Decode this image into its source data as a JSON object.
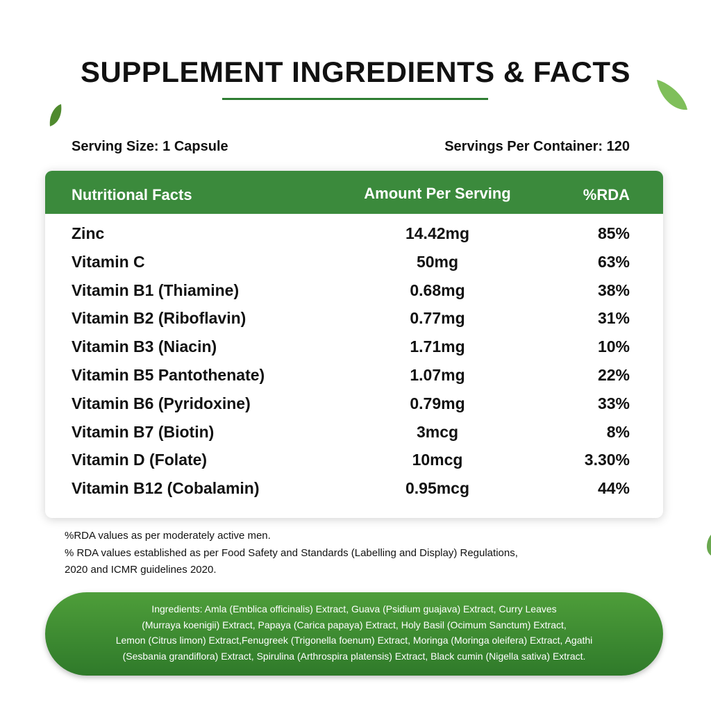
{
  "header": {
    "title": "SUPPLEMENT INGREDIENTS & FACTS"
  },
  "serving": {
    "size": "Serving Size: 1 Capsule",
    "per_container": "Servings Per Container: 120"
  },
  "table": {
    "columns": [
      "Nutritional Facts",
      "Amount Per Serving",
      "%RDA"
    ],
    "rows": [
      [
        "Zinc",
        "14.42mg",
        "85%"
      ],
      [
        "Vitamin C",
        "50mg",
        "63%"
      ],
      [
        "Vitamin B1 (Thiamine)",
        "0.68mg",
        "38%"
      ],
      [
        "Vitamin B2 (Riboflavin)",
        "0.77mg",
        "31%"
      ],
      [
        "Vitamin B3 (Niacin)",
        "1.71mg",
        "10%"
      ],
      [
        "Vitamin B5 Pantothenate)",
        "1.07mg",
        "22%"
      ],
      [
        "Vitamin B6 (Pyridoxine)",
        "0.79mg",
        "33%"
      ],
      [
        "Vitamin B7 (Biotin)",
        "3mcg",
        "8%"
      ],
      [
        "Vitamin D (Folate)",
        "10mcg",
        "3.30%"
      ],
      [
        "Vitamin B12 (Cobalamin)",
        "0.95mcg",
        "44%"
      ]
    ]
  },
  "notes": [
    "%RDA values as per moderately active men.",
    "% RDA values established as per Food Safety and Standards (Labelling and Display) Regulations,",
    "2020 and ICMR guidelines 2020."
  ],
  "ingredients": [
    "Ingredients: Amla (Emblica officinalis) Extract, Guava (Psidium guajava) Extract, Curry Leaves",
    "(Murraya koenigii) Extract, Papaya (Carica papaya) Extract, Holy Basil (Ocimum Sanctum) Extract,",
    "Lemon (Citrus limon) Extract,Fenugreek (Trigonella foenum) Extract, Moringa (Moringa oleifera) Extract, Agathi",
    "(Sesbania grandiflora) Extract, Spirulina (Arthrospira platensis) Extract, Black cumin (Nigella sativa) Extract."
  ]
}
